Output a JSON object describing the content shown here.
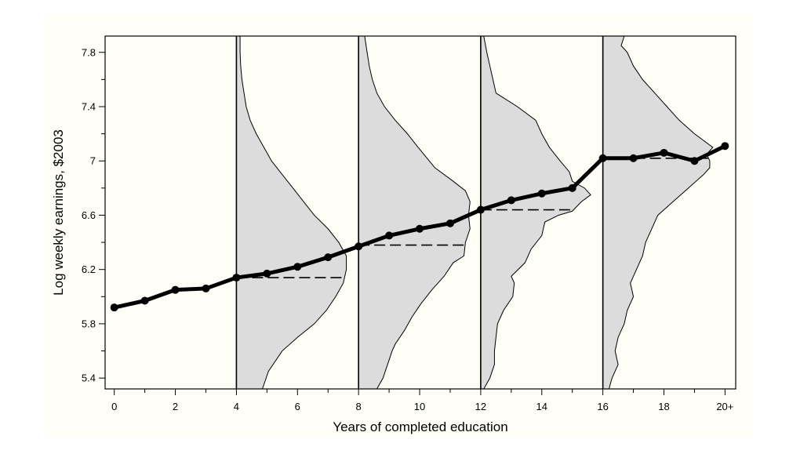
{
  "chart_data": {
    "type": "line",
    "title": "",
    "xlabel": "Years of completed education",
    "ylabel": "Log weekly earnings, $2003",
    "xlim": [
      -0.3,
      20.35
    ],
    "ylim": [
      5.32,
      7.92
    ],
    "x_ticks": [
      {
        "value": 0,
        "label": "0"
      },
      {
        "value": 2,
        "label": "2"
      },
      {
        "value": 4,
        "label": "4"
      },
      {
        "value": 6,
        "label": "6"
      },
      {
        "value": 8,
        "label": "8"
      },
      {
        "value": 10,
        "label": "10"
      },
      {
        "value": 12,
        "label": "12"
      },
      {
        "value": 14,
        "label": "14"
      },
      {
        "value": 16,
        "label": "16"
      },
      {
        "value": 18,
        "label": "18"
      },
      {
        "value": 20,
        "label": "20+"
      }
    ],
    "x_minor_ticks": [
      1,
      3,
      5,
      7,
      9,
      11,
      13,
      15,
      17,
      19
    ],
    "y_ticks": [
      {
        "value": 5.4,
        "label": "5.4"
      },
      {
        "value": 5.8,
        "label": "5.8"
      },
      {
        "value": 6.2,
        "label": "6.2"
      },
      {
        "value": 6.6,
        "label": "6.6"
      },
      {
        "value": 7.0,
        "label": "7"
      },
      {
        "value": 7.4,
        "label": "7.4"
      },
      {
        "value": 7.8,
        "label": "7.8"
      }
    ],
    "y_minor_ticks": [
      5.6,
      6.0,
      6.4,
      6.8,
      7.2,
      7.6
    ],
    "grid": false,
    "series": [
      {
        "x": [
          0,
          1,
          2,
          3,
          4,
          5,
          6,
          7,
          8,
          9,
          10,
          11,
          12,
          13,
          14,
          15,
          16,
          17,
          18,
          19,
          20
        ],
        "values": [
          5.92,
          5.97,
          6.05,
          6.06,
          6.14,
          6.17,
          6.22,
          6.29,
          6.37,
          6.45,
          6.5,
          6.54,
          6.64,
          6.71,
          6.76,
          6.8,
          7.02,
          7.02,
          7.06,
          7.0,
          7.11
        ]
      }
    ],
    "reference_lines": [
      4,
      8,
      12,
      16
    ],
    "distributions": [
      {
        "at": 4,
        "mean": 6.14,
        "density": [
          [
            5.32,
            0.85
          ],
          [
            5.45,
            1.05
          ],
          [
            5.6,
            1.5
          ],
          [
            5.7,
            2.0
          ],
          [
            5.8,
            2.55
          ],
          [
            5.9,
            2.95
          ],
          [
            6.0,
            3.25
          ],
          [
            6.1,
            3.5
          ],
          [
            6.2,
            3.6
          ],
          [
            6.3,
            3.6
          ],
          [
            6.4,
            3.35
          ],
          [
            6.5,
            3.0
          ],
          [
            6.6,
            2.55
          ],
          [
            6.7,
            2.2
          ],
          [
            6.8,
            1.85
          ],
          [
            6.9,
            1.5
          ],
          [
            7.0,
            1.15
          ],
          [
            7.1,
            0.9
          ],
          [
            7.2,
            0.65
          ],
          [
            7.3,
            0.45
          ],
          [
            7.4,
            0.32
          ],
          [
            7.5,
            0.25
          ],
          [
            7.6,
            0.18
          ],
          [
            7.7,
            0.14
          ],
          [
            7.8,
            0.12
          ],
          [
            7.92,
            0.12
          ]
        ]
      },
      {
        "at": 8,
        "mean": 6.38,
        "density": [
          [
            5.32,
            0.6
          ],
          [
            5.4,
            0.8
          ],
          [
            5.5,
            0.95
          ],
          [
            5.6,
            1.1
          ],
          [
            5.65,
            1.2
          ],
          [
            5.75,
            1.5
          ],
          [
            5.85,
            1.75
          ],
          [
            5.95,
            2.05
          ],
          [
            6.05,
            2.4
          ],
          [
            6.15,
            2.8
          ],
          [
            6.25,
            3.1
          ],
          [
            6.3,
            3.45
          ],
          [
            6.4,
            3.5
          ],
          [
            6.5,
            3.65
          ],
          [
            6.6,
            3.6
          ],
          [
            6.7,
            3.65
          ],
          [
            6.78,
            3.5
          ],
          [
            6.85,
            3.1
          ],
          [
            6.95,
            2.5
          ],
          [
            7.1,
            1.95
          ],
          [
            7.2,
            1.6
          ],
          [
            7.3,
            1.2
          ],
          [
            7.4,
            0.85
          ],
          [
            7.5,
            0.6
          ],
          [
            7.6,
            0.45
          ],
          [
            7.7,
            0.35
          ],
          [
            7.8,
            0.28
          ],
          [
            7.92,
            0.2
          ]
        ]
      },
      {
        "at": 12,
        "mean": 6.64,
        "density": [
          [
            5.32,
            0.1
          ],
          [
            5.4,
            0.3
          ],
          [
            5.5,
            0.45
          ],
          [
            5.6,
            0.45
          ],
          [
            5.7,
            0.5
          ],
          [
            5.8,
            0.55
          ],
          [
            5.9,
            0.75
          ],
          [
            6.0,
            1.05
          ],
          [
            6.1,
            1.1
          ],
          [
            6.15,
            1.0
          ],
          [
            6.25,
            1.45
          ],
          [
            6.35,
            1.65
          ],
          [
            6.45,
            2.0
          ],
          [
            6.55,
            2.1
          ],
          [
            6.6,
            2.55
          ],
          [
            6.63,
            3.0
          ],
          [
            6.7,
            3.3
          ],
          [
            6.75,
            3.6
          ],
          [
            6.8,
            3.4
          ],
          [
            6.85,
            3.0
          ],
          [
            6.92,
            2.9
          ],
          [
            7.0,
            2.6
          ],
          [
            7.1,
            2.25
          ],
          [
            7.2,
            2.0
          ],
          [
            7.3,
            1.8
          ],
          [
            7.4,
            1.2
          ],
          [
            7.5,
            0.5
          ],
          [
            7.6,
            0.4
          ],
          [
            7.7,
            0.3
          ],
          [
            7.8,
            0.2
          ],
          [
            7.92,
            0.1
          ]
        ]
      },
      {
        "at": 16,
        "mean": 7.02,
        "density": [
          [
            5.32,
            0.2
          ],
          [
            5.4,
            0.3
          ],
          [
            5.5,
            0.5
          ],
          [
            5.6,
            0.4
          ],
          [
            5.7,
            0.5
          ],
          [
            5.8,
            0.7
          ],
          [
            5.9,
            0.8
          ],
          [
            6.0,
            1.0
          ],
          [
            6.1,
            0.9
          ],
          [
            6.2,
            1.1
          ],
          [
            6.3,
            1.3
          ],
          [
            6.4,
            1.4
          ],
          [
            6.5,
            1.6
          ],
          [
            6.6,
            1.8
          ],
          [
            6.7,
            2.3
          ],
          [
            6.8,
            2.8
          ],
          [
            6.9,
            3.3
          ],
          [
            6.95,
            3.5
          ],
          [
            7.0,
            3.5
          ],
          [
            7.05,
            3.4
          ],
          [
            7.1,
            3.6
          ],
          [
            7.15,
            3.3
          ],
          [
            7.2,
            3.0
          ],
          [
            7.3,
            2.5
          ],
          [
            7.4,
            2.1
          ],
          [
            7.5,
            1.7
          ],
          [
            7.6,
            1.3
          ],
          [
            7.7,
            1.0
          ],
          [
            7.8,
            0.8
          ],
          [
            7.85,
            0.6
          ],
          [
            7.92,
            0.7
          ]
        ]
      }
    ]
  }
}
